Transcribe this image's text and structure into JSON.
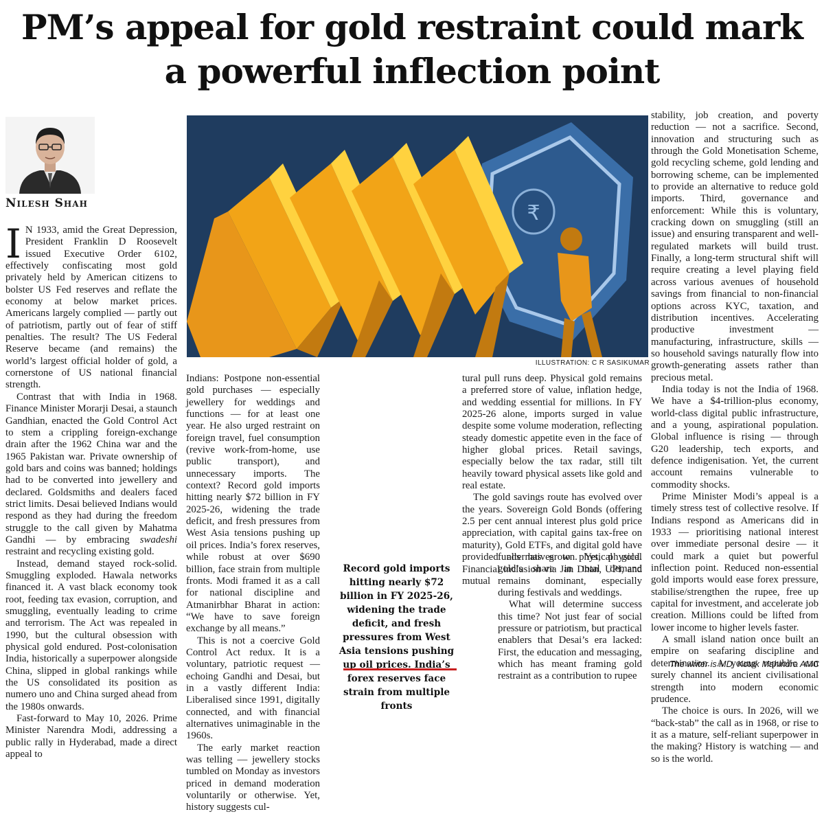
{
  "headline": {
    "line1": "PM’s appeal for gold restraint could mark",
    "line2": "a powerful inflection point"
  },
  "byline": "Nilesh Shah",
  "illustration": {
    "credit": "ILLUSTRATION: C R SASIKUMAR",
    "colors": {
      "background": "#1f3c5f",
      "gold": "#f2a417",
      "gold_dark": "#c27a10",
      "shield": "#2f5f96"
    }
  },
  "pull_quote": "Record gold imports hitting nearly $72 billion in FY 2025-26, widening the trade deficit, and fresh pressures from West Asia tensions pushing up oil prices. India’s forex reserves face strain from multiple fronts",
  "article": {
    "col1": {
      "p1_dropcap": "I",
      "p1_body": "N 1933, amid the Great Depression, President Franklin D Roosevelt issued Executive Order 6102, effectively confiscating most gold privately held by American citizens to bolster US Fed reserves and reflate the economy at below market prices. Americans largely complied — partly out of patriotism, partly out of fear of stiff penalties. The result? The US Federal Reserve became (and remains) the world’s largest official holder of gold, a cornerstone of US national financial strength.",
      "p2_before": "Contrast that with India in 1968. Finance Minister Morarji Desai, a staunch Gandhian, enacted the Gold Control Act to stem a crippling foreign-exchange drain after the 1962 China war and the 1965 Pakistan war. Private ownership of gold bars and coins was banned; holdings had to be converted into jewellery and declared. Goldsmiths and dealers faced strict limits. Desai believed Indians would respond as they had during the freedom struggle to the call given by Mahatma Gandhi — by embracing ",
      "p2_em": "swadeshi",
      "p2_after": " restraint and recycling existing gold.",
      "p3": "Instead, demand stayed rock-solid. Smuggling exploded. Hawala networks financed it. A vast black economy took root, feeding tax evasion, corruption, and smuggling, eventually leading to crime and terrorism. The Act was repealed in 1990, but the cultural obsession with physical gold endured. Post-colonisation India, historically a superpower alongside China, slipped in global rankings while the US consolidated its position as numero uno and China surged ahead from the 1980s onwards.",
      "p4": "Fast-forward to May 10, 2026. Prime Minister Narendra Modi, addressing a public rally in Hyderabad, made a direct appeal to"
    },
    "col2": {
      "p1": "Indians: Postpone non-essential gold purchases — especially jewellery for weddings and functions — for at least one year. He also urged restraint on foreign travel, fuel consumption (revive work-from-home, use public transport), and unnecessary imports. The context? Record gold imports hitting nearly $72 billion in FY 2025-26, widening the trade deficit, and fresh pressures from West Asia tensions pushing up oil prices. India’s forex reserves, while robust at over $690 billion, face strain from multiple fronts. Modi framed it as a call for national discipline and Atmanirbhar Bharat in action: “We have to save foreign exchange by all means.”",
      "p2": "This is not a coercive Gold Control Act redux. It is a voluntary, patriotic request — echoing Gandhi and Desai, but in a vastly different India: Liberalised since 1991, digitally connected, and with financial alternatives unimaginable in the 1960s.",
      "p3": "The early market reaction was telling — jewellery stocks tumbled on Monday as investors priced in demand moderation voluntarily or otherwise. Yet, history suggests cul-"
    },
    "col3": {
      "p1": "tural pull runs deep. Physical gold remains a preferred store of value, inflation hedge, and wedding essential for millions. In FY 2025-26 alone, imports surged in value despite some volume moderation, reflecting steady domestic appetite even in the face of higher global prices. Retail savings, especially below the tax radar, still tilt heavily toward physical assets like gold and real estate.",
      "p2": "The gold savings route has evolved over the years. Sovereign Gold Bonds (offering 2.5 per cent annual interest plus gold price appreciation, with capital gains tax-free on maturity), Gold ETFs, and digital gold have provided alternatives to physical gold. Financial inclusion via Jan Dhan, UPI, and mutual",
      "p2b": "funds has grown. Yet, physical gold’s share in total demand remains dominant, especially during festivals and weddings.",
      "p3": "What will determine success this time? Not just fear of social pressure or patriotism, but practical enablers that Desai’s era lacked: First, the education and messaging, which has meant framing gold restraint as a contribution to rupee"
    },
    "col4": {
      "p1": "stability, job creation, and poverty reduction — not a sacrifice. Second, innovation and structuring such as through the Gold Monetisation Scheme, gold recycling scheme, gold lending and borrowing scheme, can be implemented to provide an alternative to reduce gold imports. Third, governance and enforcement: While this is voluntary, cracking down on smuggling (still an issue) and ensuring transparent and well-regulated markets will build trust. Finally, a long-term structural shift will require creating a level playing field across various avenues of household savings from financial to non-financial options across KYC, taxation, and distribution incentives. Accelerating productive investment — manufacturing, infrastructure, skills — so household savings naturally flow into growth-generating assets rather than precious metal.",
      "p2": "India today is not the India of 1968. We have a $4-trillion-plus economy, world-class digital public infrastructure, and a young, aspirational population. Global influence is rising — through G20 leadership, tech exports, and defence indigenisation. Yet, the current account remains vulnerable to commodity shocks.",
      "p3": "Prime Minister Modi’s appeal is a timely stress test of collective resolve. If Indians respond as Americans did in 1933 — prioritising national interest over immediate personal desire — it could mark a quiet but powerful inflection point. Reduced non-essential gold imports would ease forex pressure, stabilise/strengthen the rupee, free up capital for investment, and accelerate job creation. Millions could be lifted from lower income to higher levels faster.",
      "p4": "A small island nation once built an empire on seafaring discipline and determination. A young republic can surely channel its ancient civilisational strength into modern economic prudence.",
      "p5": "The choice is ours. In 2026, will we “back-stab” the call as in 1968, or rise to it as a mature, self-reliant superpower in the making? History is watching — and so is the world."
    },
    "footer": "The writer is MD, Kotak Mahindra AMC"
  }
}
